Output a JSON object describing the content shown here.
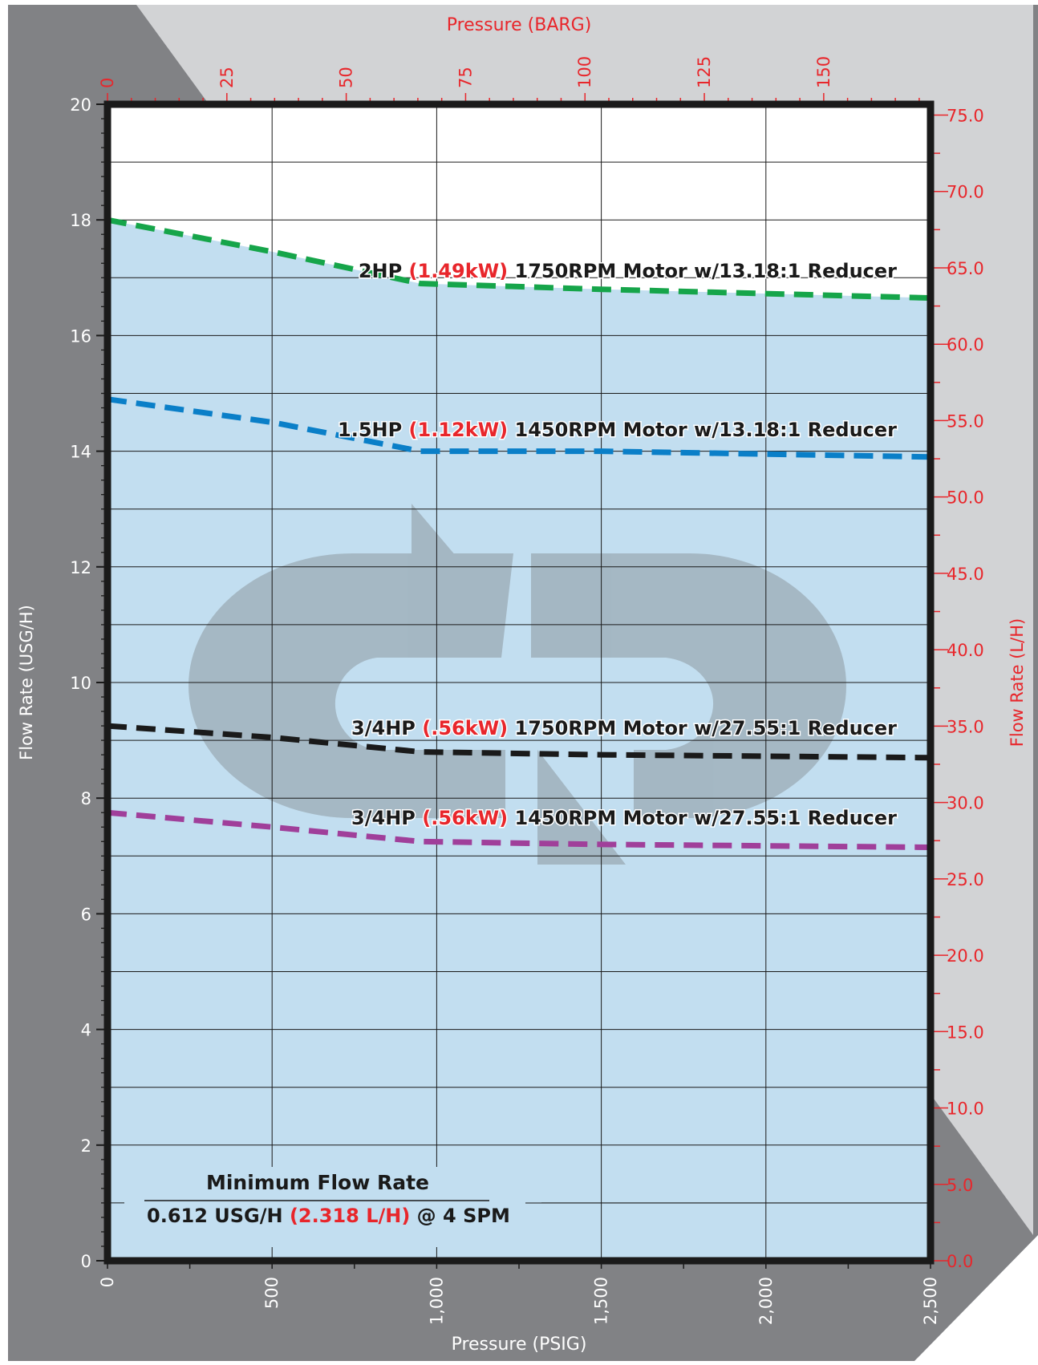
{
  "colors": {
    "frame_gray": "#818285",
    "light_gray": "#d2d3d5",
    "plot_fill": "#c2def0",
    "red": "#e8262b",
    "grid": "#1a1a1a",
    "axis": "#1a1a1a",
    "logo": "#a3b5c1"
  },
  "chart_data": {
    "type": "line",
    "xlabel_bottom": "Pressure (PSIG)",
    "xlabel_top": "Pressure (BARG)",
    "ylabel_left": "Flow Rate (USG/H)",
    "ylabel_right": "Flow Rate (L/H)",
    "xlim": [
      0,
      2500
    ],
    "ylim": [
      0,
      20
    ],
    "x_ticks": [
      "0",
      "500",
      "1,000",
      "1,500",
      "2,000",
      "2,500"
    ],
    "y_ticks": [
      "0",
      "2",
      "4",
      "6",
      "8",
      "10",
      "12",
      "14",
      "16",
      "18",
      "20"
    ],
    "top_ticks": [
      "0",
      "25",
      "50",
      "75",
      "100",
      "125",
      "150"
    ],
    "right_ticks": [
      "0.0",
      "5.0",
      "10.0",
      "15.0",
      "20.0",
      "25.0",
      "30.0",
      "35.0",
      "40.0",
      "45.0",
      "50.0",
      "55.0",
      "60.0",
      "65.0",
      "70.0",
      "75.0"
    ],
    "grid": true,
    "series": [
      {
        "color": "#16a54a",
        "x": [
          0,
          500,
          950,
          1500,
          2500
        ],
        "y": [
          18.0,
          17.45,
          16.9,
          16.8,
          16.65
        ],
        "label": {
          "part1": "2HP ",
          "part2": "(1.49kW)",
          "part3": " 1750RPM Motor w/13.18:1 Reducer"
        }
      },
      {
        "color": "#0a7fc8",
        "x": [
          0,
          500,
          950,
          1500,
          2500
        ],
        "y": [
          14.9,
          14.5,
          14.0,
          14.0,
          13.9
        ],
        "label": {
          "part1": "1.5HP ",
          "part2": "(1.12kW)",
          "part3": " 1450RPM Motor w/13.18:1 Reducer"
        }
      },
      {
        "color": "#1a1a1a",
        "x": [
          0,
          500,
          950,
          1500,
          2500
        ],
        "y": [
          9.25,
          9.05,
          8.8,
          8.75,
          8.7
        ],
        "label": {
          "part1": "3/4HP ",
          "part2": "(.56kW)",
          "part3": " 1750RPM Motor w/27.55:1 Reducer"
        }
      },
      {
        "color": "#a03f9a",
        "x": [
          0,
          500,
          950,
          1500,
          2500
        ],
        "y": [
          7.75,
          7.5,
          7.25,
          7.2,
          7.15
        ],
        "label": {
          "part1": "3/4HP ",
          "part2": "(.56kW)",
          "part3": " 1450RPM Motor w/27.55:1 Reducer"
        }
      }
    ],
    "annotation": {
      "title": "Minimum Flow Rate",
      "value_part1": "0.612 USG/H ",
      "value_part2": "(2.318 L/H)",
      "value_part3": " @ 4 SPM"
    }
  }
}
